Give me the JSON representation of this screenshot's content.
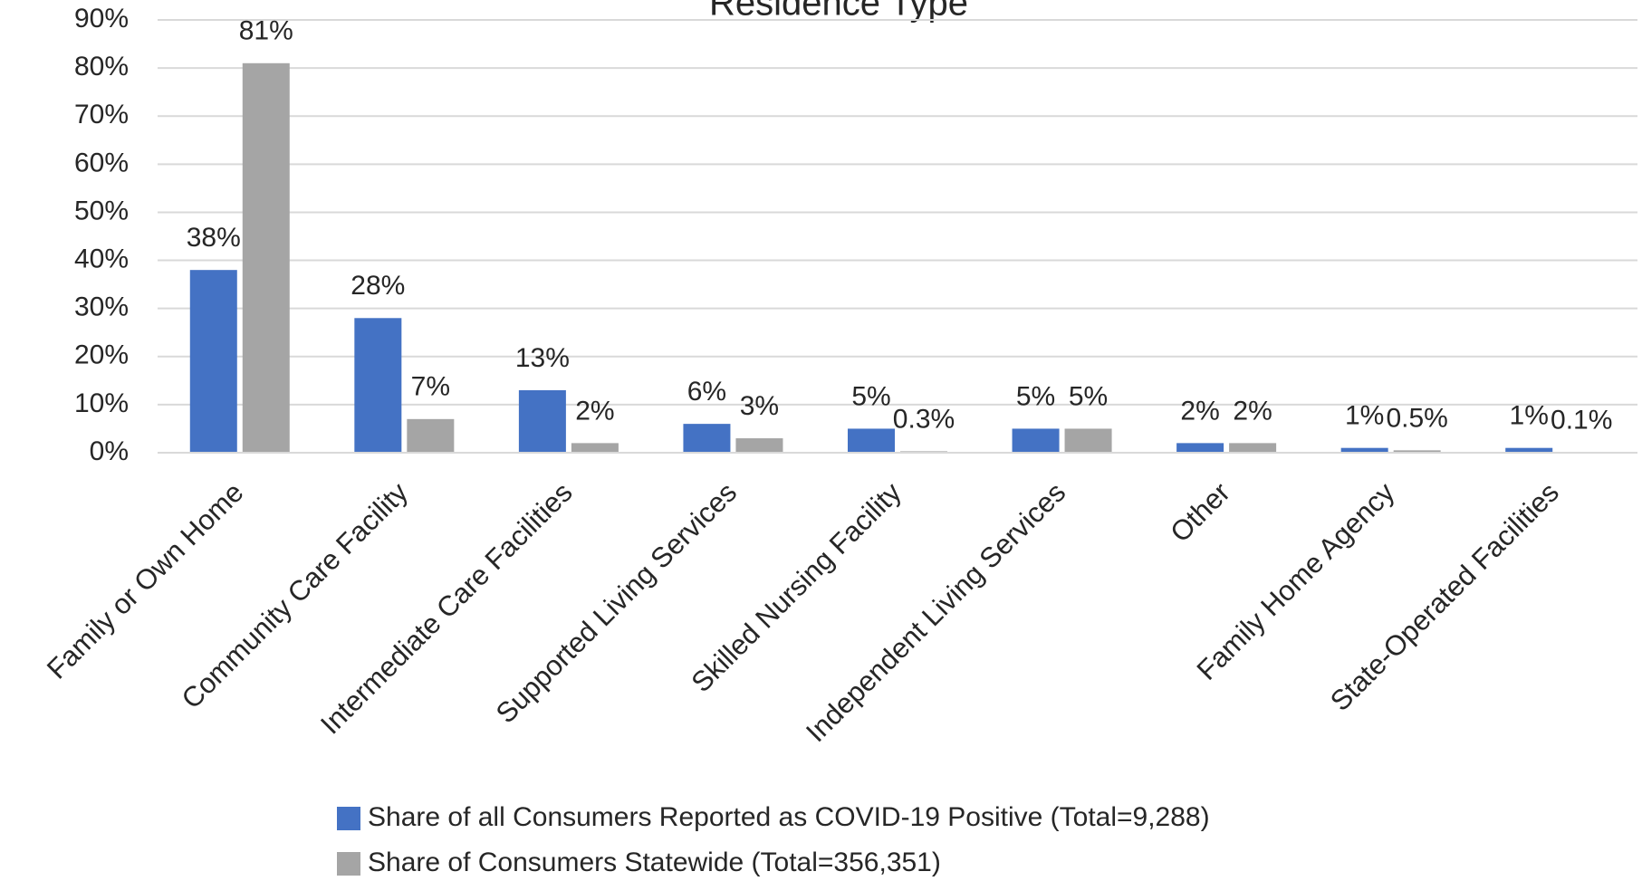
{
  "chart_data": {
    "type": "bar",
    "title": "Residence Type",
    "categories": [
      "Family or Own Home",
      "Community Care Facility",
      "Intermediate Care Facilities",
      "Supported Living Services",
      "Skilled Nursing Facility",
      "Independent Living Services",
      "Other",
      "Family Home Agency",
      "State-Operated Facilities"
    ],
    "series": [
      {
        "name": "Share of all Consumers Reported as COVID-19 Positive (Total=9,288)",
        "color": "#4472c4",
        "values": [
          38,
          28,
          13,
          6,
          5,
          5,
          2,
          1,
          1
        ],
        "value_labels": [
          "38%",
          "28%",
          "13%",
          "6%",
          "5%",
          "5%",
          "2%",
          "1%",
          "1%"
        ]
      },
      {
        "name": "Share of Consumers Statewide (Total=356,351)",
        "color": "#a5a5a5",
        "values": [
          81,
          7,
          2,
          3,
          0.3,
          5,
          2,
          0.5,
          0.1
        ],
        "value_labels": [
          "81%",
          "7%",
          "2%",
          "3%",
          "0.3%",
          "5%",
          "2%",
          "0.5%",
          "0.1%"
        ]
      }
    ],
    "ylim": [
      0,
      90
    ],
    "yticks": [
      {
        "value": 0,
        "label": "0%"
      },
      {
        "value": 10,
        "label": "10%"
      },
      {
        "value": 20,
        "label": "20%"
      },
      {
        "value": 30,
        "label": "30%"
      },
      {
        "value": 40,
        "label": "40%"
      },
      {
        "value": 50,
        "label": "50%"
      },
      {
        "value": 60,
        "label": "60%"
      },
      {
        "value": 70,
        "label": "70%"
      },
      {
        "value": 80,
        "label": "80%"
      },
      {
        "value": 90,
        "label": "90%"
      }
    ],
    "grid": true,
    "legend": "bottom"
  }
}
